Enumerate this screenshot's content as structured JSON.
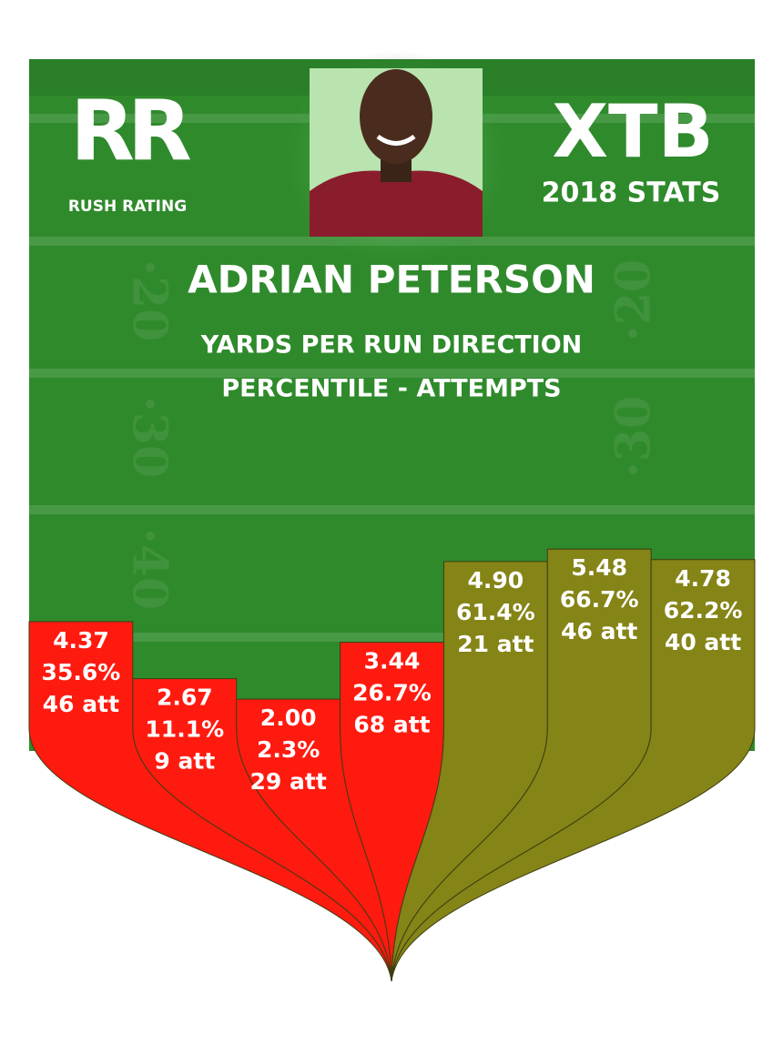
{
  "logo_left": {
    "mark": "RR",
    "caption": "RUSH RATING"
  },
  "logo_right": {
    "mark": "XTB",
    "caption": "2018 STATS"
  },
  "player": "ADRIAN PETERSON",
  "subtitle": [
    "YARDS PER RUN DIRECTION",
    "PERCENTILE - ATTEMPTS"
  ],
  "directions": [
    {
      "ypc": "4.37",
      "percentile": 35.6,
      "percentile_label": "35.6%",
      "attempts": "46 att",
      "color": "#ff1a10"
    },
    {
      "ypc": "2.67",
      "percentile": 11.1,
      "percentile_label": "11.1%",
      "attempts": "9 att",
      "color": "#ff1a10"
    },
    {
      "ypc": "2.00",
      "percentile": 2.3,
      "percentile_label": "2.3%",
      "attempts": "29 att",
      "color": "#ff1a10"
    },
    {
      "ypc": "3.44",
      "percentile": 26.7,
      "percentile_label": "26.7%",
      "attempts": "68 att",
      "color": "#ff1a10"
    },
    {
      "ypc": "4.90",
      "percentile": 61.4,
      "percentile_label": "61.4%",
      "attempts": "21 att",
      "color": "#858417"
    },
    {
      "ypc": "5.48",
      "percentile": 66.7,
      "percentile_label": "66.7%",
      "attempts": "46 att",
      "color": "#858417"
    },
    {
      "ypc": "4.78",
      "percentile": 62.2,
      "percentile_label": "62.2%",
      "attempts": "40 att",
      "color": "#858417"
    }
  ]
}
